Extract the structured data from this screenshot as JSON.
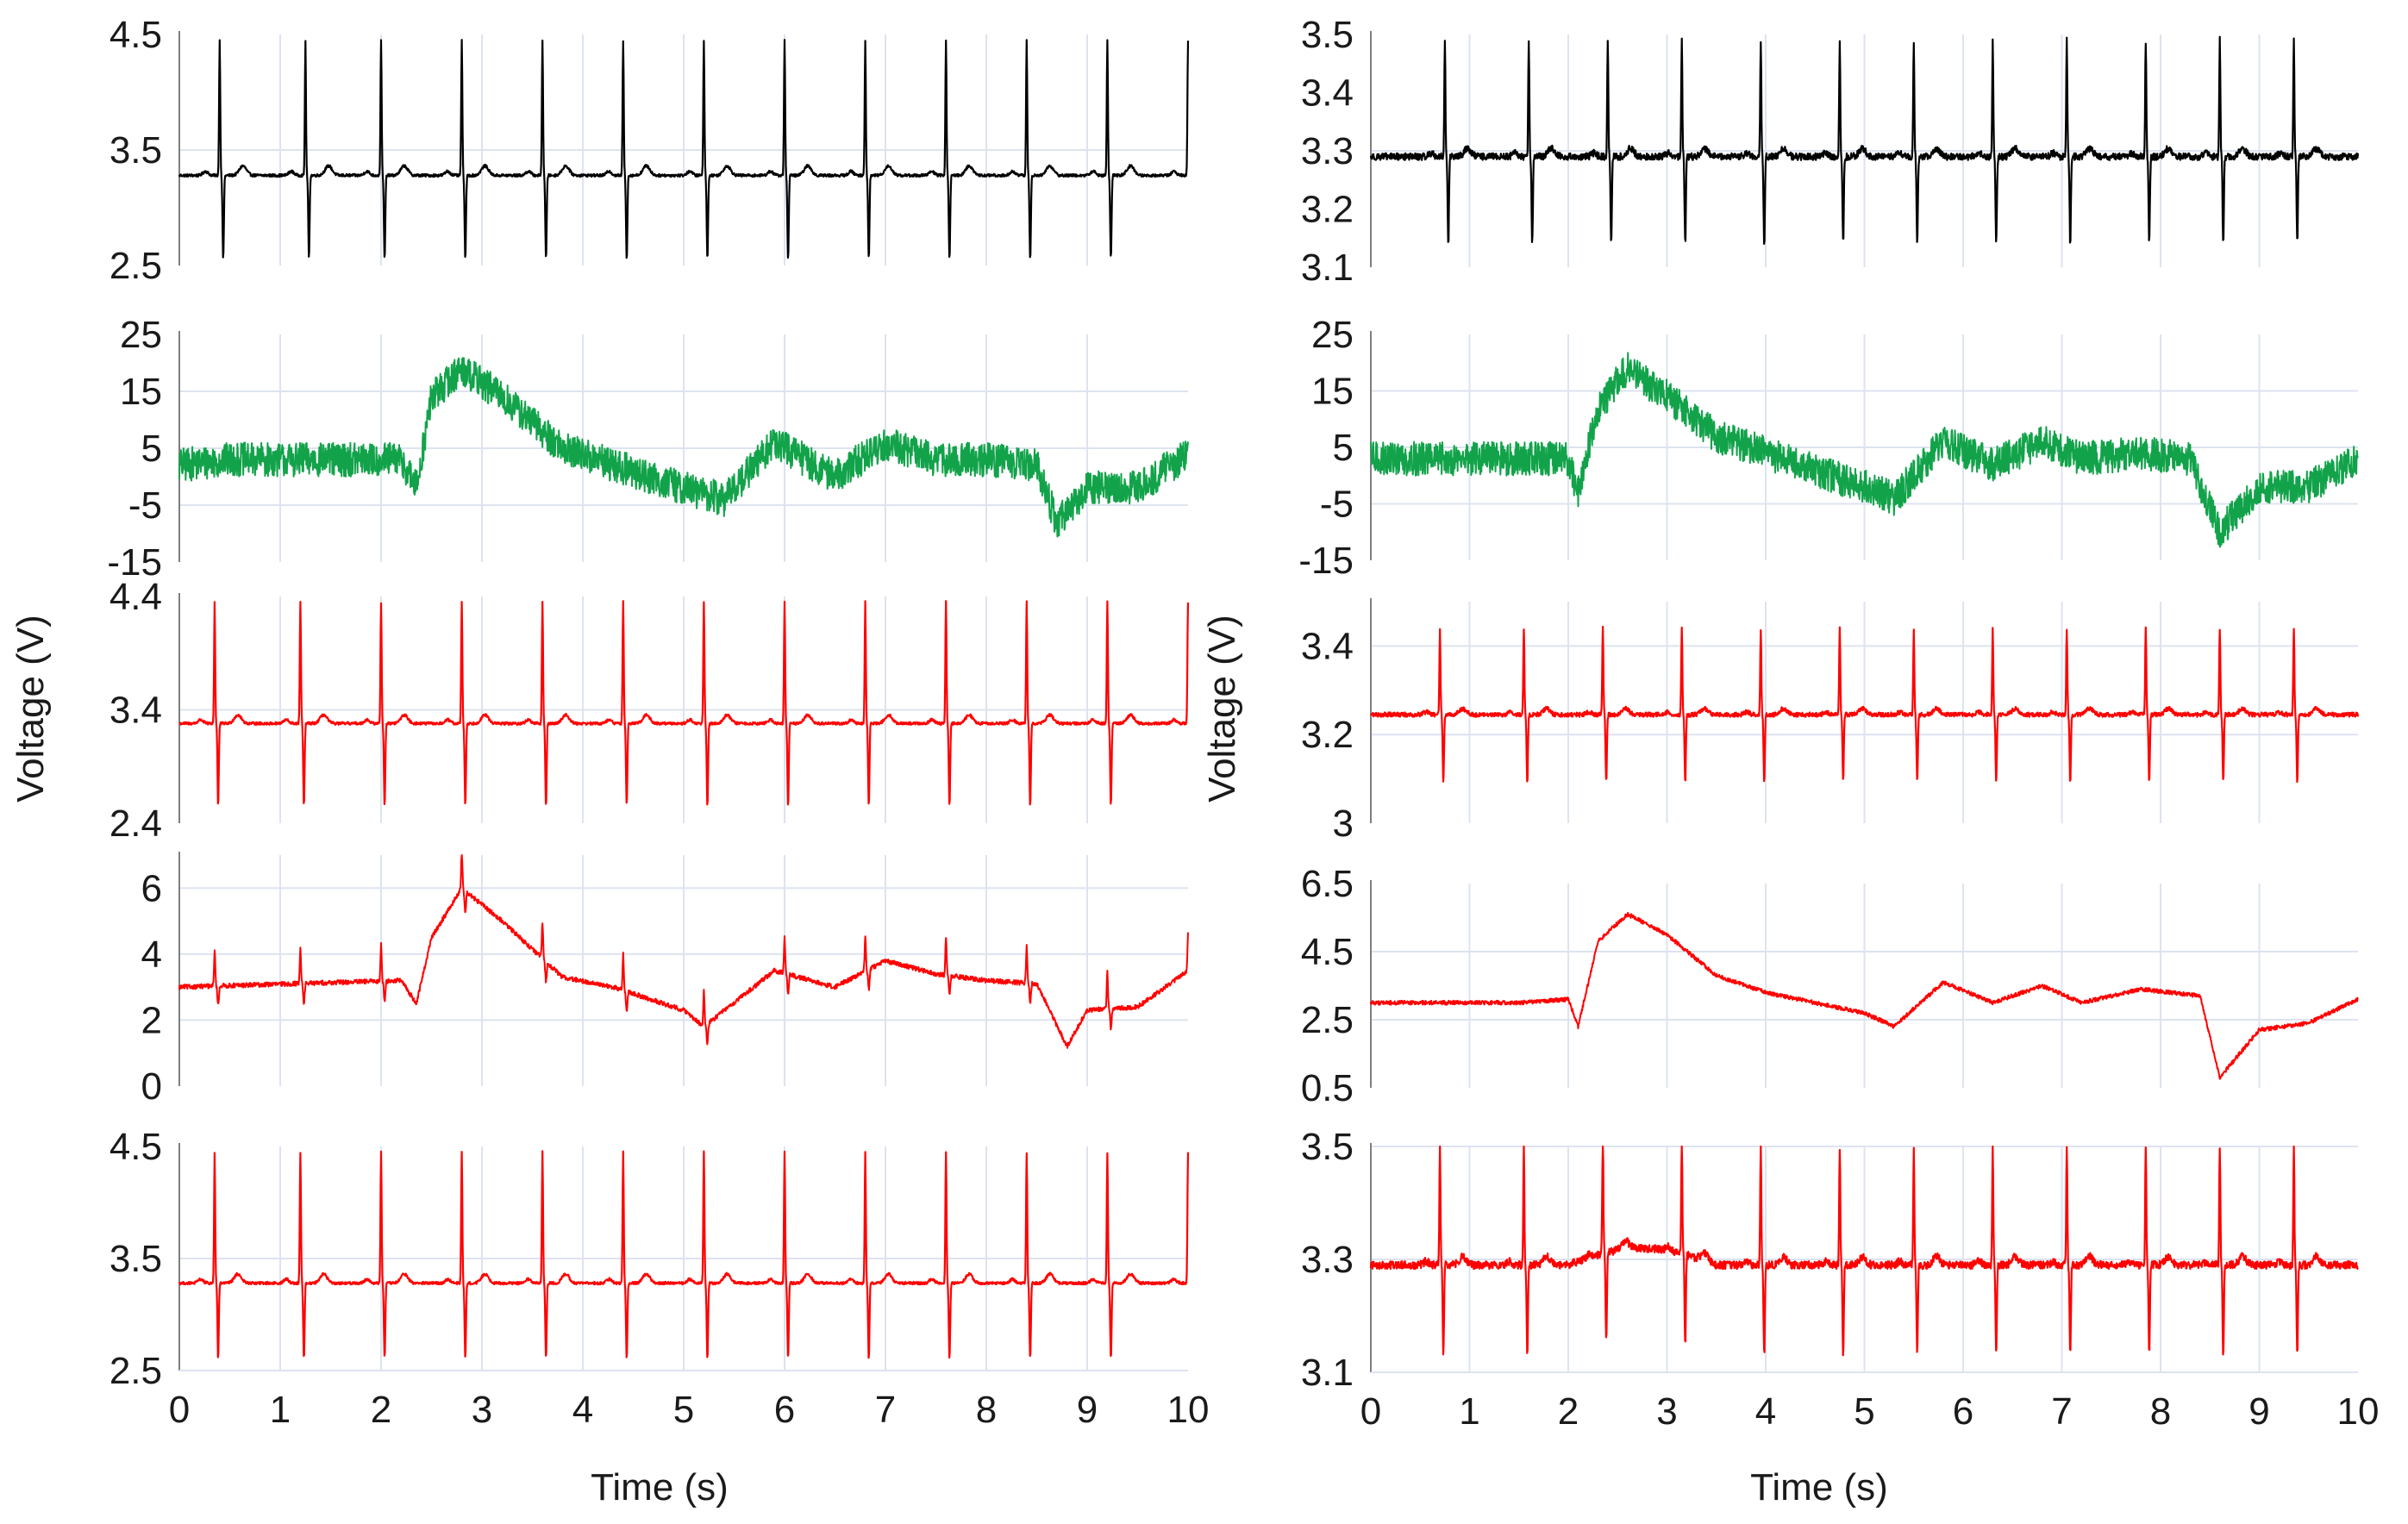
{
  "figure": {
    "y_axis_label": "Voltage (V)",
    "x_axis_label": "Time (s)"
  },
  "chart_data": [
    {
      "type": "line",
      "column": "left",
      "row": 1,
      "color": "#000000",
      "signal": "ecg",
      "baseline": 3.28,
      "beats": [
        0.4,
        1.25,
        2.0,
        2.8,
        3.6,
        4.4,
        5.2,
        6.0,
        6.8,
        7.6,
        8.4,
        9.2,
        10.0
      ],
      "r_peak": 4.45,
      "s_dip": 2.55,
      "noise": 0.012,
      "ylim": [
        2.5,
        4.5
      ],
      "yticks": [
        "2.5",
        "3.5",
        "4.5"
      ],
      "ygrid": [
        3.5
      ],
      "xlim": [
        0,
        10
      ],
      "xticks": []
    },
    {
      "type": "line",
      "column": "left",
      "row": 2,
      "color": "#12a34a",
      "signal": "drift",
      "knots": [
        [
          0,
          2
        ],
        [
          0.5,
          3
        ],
        [
          1.5,
          3
        ],
        [
          2.2,
          3
        ],
        [
          2.35,
          -2
        ],
        [
          2.5,
          14
        ],
        [
          2.8,
          19
        ],
        [
          3.2,
          14
        ],
        [
          3.8,
          5
        ],
        [
          4.3,
          2
        ],
        [
          5.0,
          -2
        ],
        [
          5.4,
          -4
        ],
        [
          5.9,
          6
        ],
        [
          6.5,
          0
        ],
        [
          7.0,
          6
        ],
        [
          7.5,
          3
        ],
        [
          8.0,
          3
        ],
        [
          8.5,
          2
        ],
        [
          8.7,
          -8
        ],
        [
          9.0,
          -2
        ],
        [
          9.5,
          -2
        ],
        [
          10,
          4
        ]
      ],
      "noise": 3.0,
      "ylim": [
        -15,
        25
      ],
      "yticks": [
        "-15",
        "-5",
        "5",
        "15",
        "25"
      ],
      "ygrid": [
        -5,
        5,
        15
      ],
      "xlim": [
        0,
        10
      ],
      "xticks": []
    },
    {
      "type": "line",
      "column": "left",
      "row": 3,
      "color": "#ff0000",
      "signal": "ecg",
      "baseline": 3.28,
      "beats": [
        0.35,
        1.2,
        2.0,
        2.8,
        3.6,
        4.4,
        5.2,
        6.0,
        6.8,
        7.6,
        8.4,
        9.2,
        10.0
      ],
      "r_peak": 4.35,
      "s_dip": 2.55,
      "noise": 0.012,
      "ylim": [
        2.4,
        4.4
      ],
      "yticks": [
        "2.4",
        "3.4",
        "4.4"
      ],
      "ygrid": [
        3.4
      ],
      "xlim": [
        0,
        10
      ],
      "xticks": []
    },
    {
      "type": "line",
      "column": "left",
      "row": 4,
      "color": "#ff0000",
      "signal": "drift",
      "knots": [
        [
          0,
          3.0
        ],
        [
          2.2,
          3.2
        ],
        [
          2.35,
          2.5
        ],
        [
          2.5,
          4.5
        ],
        [
          2.8,
          6.0
        ],
        [
          3.2,
          5.0
        ],
        [
          3.8,
          3.3
        ],
        [
          4.3,
          3.0
        ],
        [
          5.0,
          2.3
        ],
        [
          5.2,
          1.8
        ],
        [
          5.9,
          3.5
        ],
        [
          6.5,
          3.0
        ],
        [
          7.0,
          3.8
        ],
        [
          7.5,
          3.4
        ],
        [
          8.0,
          3.2
        ],
        [
          8.5,
          3.1
        ],
        [
          8.8,
          1.2
        ],
        [
          9.0,
          2.3
        ],
        [
          9.5,
          2.4
        ],
        [
          10,
          3.5
        ]
      ],
      "beats": [
        0.35,
        1.2,
        2.0,
        2.8,
        3.6,
        4.4,
        5.2,
        6.0,
        6.8,
        7.6,
        8.4,
        9.2,
        10.0
      ],
      "r_height": 1.1,
      "s_depth": 0.6,
      "noise": 0.07,
      "ylim": [
        0,
        7
      ],
      "yticks": [
        "0",
        "2",
        "4",
        "6"
      ],
      "ygrid": [
        2,
        4,
        6
      ],
      "xlim": [
        0,
        10
      ],
      "xticks": []
    },
    {
      "type": "line",
      "column": "left",
      "row": 5,
      "color": "#ff0000",
      "signal": "ecg",
      "baseline": 3.28,
      "beats": [
        0.35,
        1.2,
        2.0,
        2.8,
        3.6,
        4.4,
        5.2,
        6.0,
        6.8,
        7.6,
        8.4,
        9.2,
        10.0
      ],
      "r_peak": 4.45,
      "s_dip": 2.6,
      "noise": 0.012,
      "ylim": [
        2.5,
        4.5
      ],
      "yticks": [
        "2.5",
        "3.5",
        "4.5"
      ],
      "ygrid": [
        3.5
      ],
      "xlim": [
        0,
        10
      ],
      "xticks": [
        "0",
        "1",
        "2",
        "3",
        "4",
        "5",
        "6",
        "7",
        "8",
        "9",
        "10"
      ]
    },
    {
      "type": "line",
      "column": "right",
      "row": 1,
      "color": "#000000",
      "signal": "ecg",
      "baseline": 3.29,
      "beats": [
        0.75,
        1.6,
        2.4,
        3.15,
        3.95,
        4.75,
        5.5,
        6.3,
        7.05,
        7.85,
        8.6,
        9.35
      ],
      "r_peak": 3.49,
      "s_dip": 3.14,
      "noise": 0.006,
      "ylim": [
        3.1,
        3.5
      ],
      "yticks": [
        "3.1",
        "3.2",
        "3.3",
        "3.4",
        "3.5"
      ],
      "ygrid": [
        3.3
      ],
      "xlim": [
        0,
        10
      ],
      "xticks": []
    },
    {
      "type": "line",
      "column": "right",
      "row": 2,
      "color": "#12a34a",
      "signal": "drift",
      "knots": [
        [
          0,
          3
        ],
        [
          1.5,
          3
        ],
        [
          2.0,
          3
        ],
        [
          2.1,
          -3
        ],
        [
          2.3,
          12
        ],
        [
          2.6,
          19
        ],
        [
          3.0,
          14
        ],
        [
          3.5,
          7
        ],
        [
          4.0,
          4
        ],
        [
          5.0,
          -2
        ],
        [
          5.3,
          -4
        ],
        [
          5.8,
          6
        ],
        [
          6.3,
          2
        ],
        [
          6.8,
          6
        ],
        [
          7.2,
          3
        ],
        [
          7.8,
          4
        ],
        [
          8.3,
          3
        ],
        [
          8.6,
          -10
        ],
        [
          9.0,
          -2
        ],
        [
          9.5,
          -2
        ],
        [
          10,
          3
        ]
      ],
      "noise": 3.0,
      "ylim": [
        -15,
        25
      ],
      "yticks": [
        "-15",
        "-5",
        "5",
        "15",
        "25"
      ],
      "ygrid": [
        -5,
        5,
        15
      ],
      "xlim": [
        0,
        10
      ],
      "xticks": []
    },
    {
      "type": "line",
      "column": "right",
      "row": 3,
      "color": "#ff0000",
      "signal": "ecg",
      "baseline": 3.245,
      "beats": [
        0.7,
        1.55,
        2.35,
        3.15,
        3.95,
        4.75,
        5.5,
        6.3,
        7.05,
        7.85,
        8.6,
        9.35
      ],
      "r_peak": 3.44,
      "s_dip": 3.09,
      "noise": 0.005,
      "ylim": [
        3.0,
        3.5
      ],
      "yticks": [
        "3",
        "3.2",
        "3.4"
      ],
      "ygrid": [
        3.2,
        3.4
      ],
      "xlim": [
        0,
        10
      ],
      "xticks": []
    },
    {
      "type": "line",
      "column": "right",
      "row": 4,
      "color": "#ff0000",
      "signal": "drift",
      "knots": [
        [
          0,
          3.0
        ],
        [
          1.5,
          3.0
        ],
        [
          2.0,
          3.1
        ],
        [
          2.1,
          2.3
        ],
        [
          2.3,
          4.8
        ],
        [
          2.6,
          5.6
        ],
        [
          3.0,
          5.0
        ],
        [
          3.5,
          3.8
        ],
        [
          4.0,
          3.3
        ],
        [
          5.0,
          2.7
        ],
        [
          5.3,
          2.3
        ],
        [
          5.8,
          3.6
        ],
        [
          6.3,
          3.0
        ],
        [
          6.8,
          3.5
        ],
        [
          7.2,
          3.0
        ],
        [
          7.8,
          3.4
        ],
        [
          8.4,
          3.2
        ],
        [
          8.6,
          0.8
        ],
        [
          9.0,
          2.2
        ],
        [
          9.5,
          2.4
        ],
        [
          10,
          3.1
        ]
      ],
      "noise": 0.06,
      "ylim": [
        0.5,
        6.5
      ],
      "yticks": [
        "0.5",
        "2.5",
        "4.5",
        "6.5"
      ],
      "ygrid": [
        2.5,
        4.5
      ],
      "xlim": [
        0,
        10
      ],
      "xticks": []
    },
    {
      "type": "line",
      "column": "right",
      "row": 5,
      "color": "#ff0000",
      "signal": "ecg",
      "baseline": 3.29,
      "beats": [
        0.7,
        1.55,
        2.35,
        3.15,
        3.95,
        4.75,
        5.5,
        6.3,
        7.05,
        7.85,
        8.6,
        9.35
      ],
      "r_peak": 3.5,
      "s_dip": 3.13,
      "noise": 0.007,
      "bump": [
        2.0,
        3.5,
        0.03
      ],
      "ylim": [
        3.1,
        3.5
      ],
      "yticks": [
        "3.1",
        "3.3",
        "3.5"
      ],
      "ygrid": [
        3.3,
        3.5
      ],
      "xlim": [
        0,
        10
      ],
      "xticks": [
        "0",
        "1",
        "2",
        "3",
        "4",
        "5",
        "6",
        "7",
        "8",
        "9",
        "10"
      ]
    }
  ]
}
